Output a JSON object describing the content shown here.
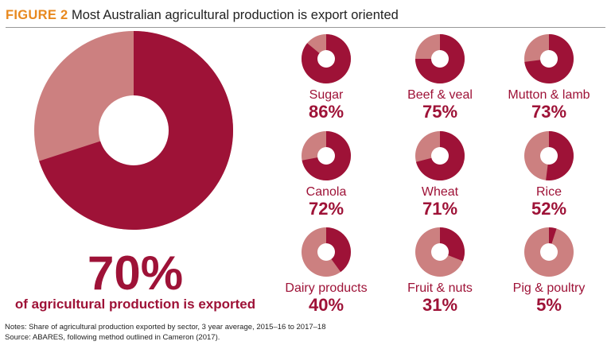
{
  "header": {
    "figure_label": "FIGURE 2",
    "title": "Most Australian agricultural production is export oriented"
  },
  "colors": {
    "exported": "#9e1237",
    "not_exported": "#cc8080",
    "figure_label": "#e8891f"
  },
  "chart_data": [
    {
      "type": "pie",
      "donut": true,
      "slices": [
        {
          "value": 70
        },
        {
          "value": 30
        }
      ],
      "value_label": "70%",
      "caption": "of agricultural production is exported"
    },
    {
      "type": "pie",
      "donut": true,
      "small_multiples": true,
      "categories": [
        "Sugar",
        "Beef & veal",
        "Mutton & lamb",
        "Canola",
        "Wheat",
        "Rice",
        "Dairy products",
        "Fruit & nuts",
        "Pig & poultry"
      ],
      "values": [
        86,
        75,
        73,
        72,
        71,
        52,
        40,
        31,
        5
      ],
      "value_labels": [
        "86%",
        "75%",
        "73%",
        "72%",
        "71%",
        "52%",
        "40%",
        "31%",
        "5%"
      ]
    }
  ],
  "notes": [
    "Notes: Share of agricultural production exported by sector, 3 year average, 2015–16 to 2017–18",
    "Source: ABARES, following method outlined in Cameron (2017)."
  ]
}
